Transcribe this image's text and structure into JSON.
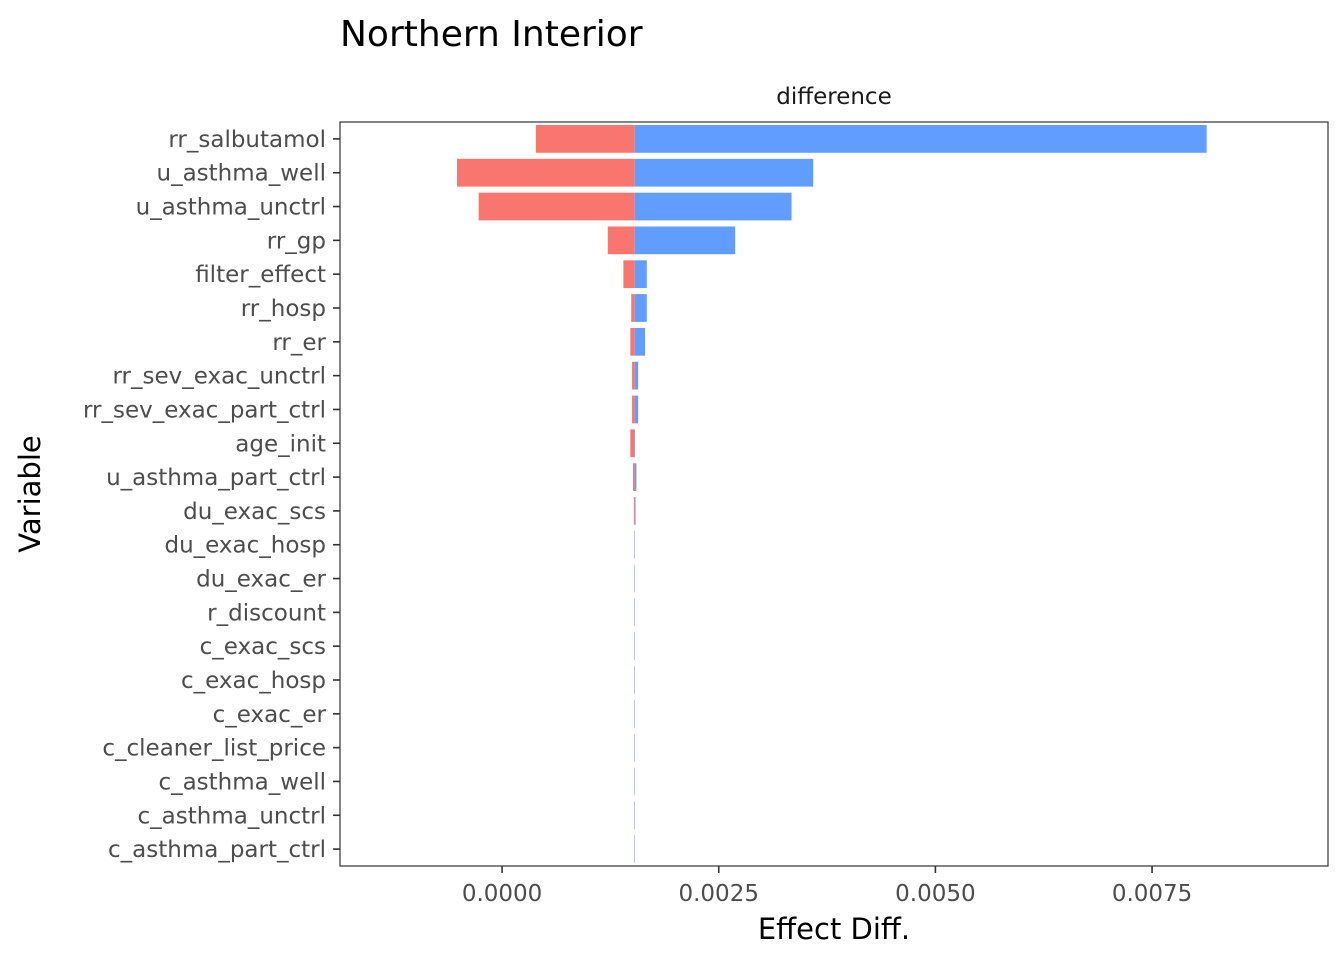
{
  "chart_data": {
    "type": "bar",
    "title": "Northern Interior",
    "facet_label": "difference",
    "xlabel": "Effect Diff.",
    "ylabel": "Variable",
    "xlim": [
      -0.00187,
      0.00953
    ],
    "baseline": 0.00153,
    "xticks": [
      {
        "value": 0.0,
        "label": "0.0000"
      },
      {
        "value": 0.0025,
        "label": "0.0025"
      },
      {
        "value": 0.005,
        "label": "0.0050"
      },
      {
        "value": 0.0075,
        "label": "0.0075"
      }
    ],
    "grid": false,
    "legend": "none",
    "colors": {
      "low": "#F8766D",
      "high": "#619CFF",
      "axis": "#333333",
      "tick": "#4d4d4d"
    },
    "categories": [
      "rr_salbutamol",
      "u_asthma_well",
      "u_asthma_unctrl",
      "rr_gp",
      "filter_effect",
      "rr_hosp",
      "rr_er",
      "rr_sev_exac_unctrl",
      "rr_sev_exac_part_ctrl",
      "age_init",
      "u_asthma_part_ctrl",
      "du_exac_scs",
      "du_exac_hosp",
      "du_exac_er",
      "r_discount",
      "c_exac_scs",
      "c_exac_hosp",
      "c_exac_er",
      "c_cleaner_list_price",
      "c_asthma_well",
      "c_asthma_unctrl",
      "c_asthma_part_ctrl"
    ],
    "series": [
      {
        "key": "low",
        "values": [
          0.00039,
          -0.00052,
          -0.00027,
          0.00122,
          0.0014,
          0.00149,
          0.00148,
          0.0015,
          0.0015,
          0.00148,
          0.00151,
          0.00152,
          0.00153,
          0.00153,
          0.00153,
          0.00153,
          0.00153,
          0.00153,
          0.00153,
          0.00153,
          0.00153,
          0.00153
        ]
      },
      {
        "key": "high",
        "values": [
          0.00813,
          0.00359,
          0.00334,
          0.00269,
          0.00167,
          0.00167,
          0.00165,
          0.00157,
          0.00157,
          0.00153,
          0.00155,
          0.00154,
          0.00153,
          0.00153,
          0.00153,
          0.00153,
          0.00153,
          0.00153,
          0.00153,
          0.00153,
          0.00153,
          0.00153
        ]
      }
    ]
  }
}
